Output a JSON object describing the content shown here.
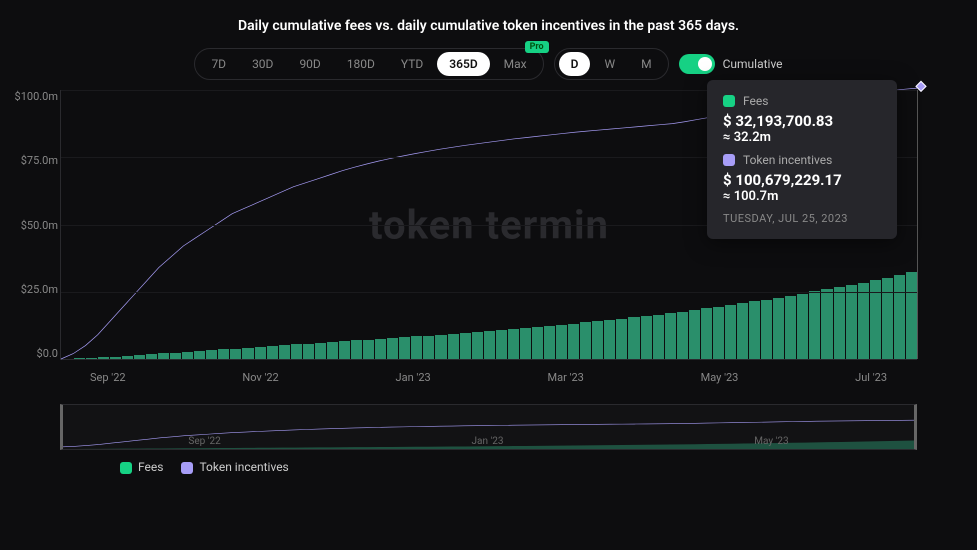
{
  "title": "Daily cumulative fees vs. daily cumulative token incentives in the past 365 days.",
  "controls": {
    "ranges": [
      "7D",
      "30D",
      "90D",
      "180D",
      "YTD",
      "365D",
      "Max"
    ],
    "range_active_index": 5,
    "pro_badge": "Pro",
    "intervals": [
      "D",
      "W",
      "M"
    ],
    "interval_active_index": 0,
    "cumulative_label": "Cumulative",
    "cumulative_on": true
  },
  "chart": {
    "type": "line+bar",
    "watermark": "token termin",
    "colors": {
      "background": "#0d0d0f",
      "grid": "#1a1a1d",
      "axis": "#2a2a2e",
      "text_muted": "#888888",
      "fees_fill": "#2a8f6b",
      "fees_legend": "#16d184",
      "incentives_line": "#a79df7"
    },
    "y": {
      "min": 0,
      "max": 100000000,
      "ticks": [
        100000000,
        75000000,
        50000000,
        25000000,
        0
      ],
      "tick_labels": [
        "$100.0m",
        "$75.0m",
        "$50.0m",
        "$25.0m",
        "$0.0"
      ]
    },
    "x": {
      "labels": [
        "Sep '22",
        "Nov '22",
        "Jan '23",
        "Mar '23",
        "May '23",
        "Jul '23"
      ]
    },
    "series": {
      "fees": {
        "label": "Fees",
        "values": [
          0,
          0.2,
          0.4,
          0.6,
          0.9,
          1.2,
          1.5,
          1.8,
          2.1,
          2.4,
          2.7,
          3.0,
          3.3,
          3.6,
          3.9,
          4.2,
          4.5,
          4.8,
          5.1,
          5.4,
          5.7,
          6.0,
          6.3,
          6.6,
          6.9,
          7.2,
          7.5,
          7.8,
          8.1,
          8.4,
          8.7,
          9.0,
          9.3,
          9.6,
          10.0,
          10.4,
          10.8,
          11.2,
          11.6,
          12.0,
          12.4,
          12.8,
          13.2,
          13.6,
          14.0,
          14.5,
          15.0,
          15.5,
          16.0,
          16.5,
          17.0,
          17.6,
          18.2,
          18.8,
          19.4,
          20.0,
          20.7,
          21.4,
          22.1,
          22.8,
          23.5,
          24.3,
          25.1,
          25.9,
          26.7,
          27.5,
          28.4,
          29.3,
          30.2,
          31.2,
          32.2
        ]
      },
      "incentives": {
        "label": "Token incentives",
        "values": [
          0,
          2,
          5,
          9,
          14,
          19,
          24,
          29,
          34,
          38,
          42,
          45,
          48,
          51,
          54,
          56,
          58,
          60,
          62,
          64,
          65.5,
          67,
          68.5,
          70,
          71.3,
          72.5,
          73.6,
          74.6,
          75.5,
          76.4,
          77.2,
          78,
          78.7,
          79.4,
          80,
          80.6,
          81.2,
          81.8,
          82.3,
          82.8,
          83.3,
          83.8,
          84.3,
          84.7,
          85.1,
          85.5,
          85.9,
          86.3,
          86.7,
          87.1,
          87.5,
          88.2,
          89,
          89.8,
          90.6,
          91.4,
          92.2,
          93,
          93.8,
          94.6,
          95.4,
          96.2,
          97,
          97.5,
          98,
          98.5,
          99,
          99.4,
          99.8,
          100.3,
          100.7
        ]
      }
    },
    "crosshair_index": 70
  },
  "tooltip": {
    "fees_label": "Fees",
    "fees_value": "$ 32,193,700.83",
    "fees_approx": "≈ 32.2m",
    "incentives_label": "Token incentives",
    "incentives_value": "$ 100,679,229.17",
    "incentives_approx": "≈ 100.7m",
    "date": "TUESDAY, JUL 25, 2023"
  },
  "brush": {
    "x_labels": [
      "Sep '22",
      "Jan '23",
      "May '23"
    ]
  },
  "legend": {
    "fees": "Fees",
    "incentives": "Token incentives"
  }
}
